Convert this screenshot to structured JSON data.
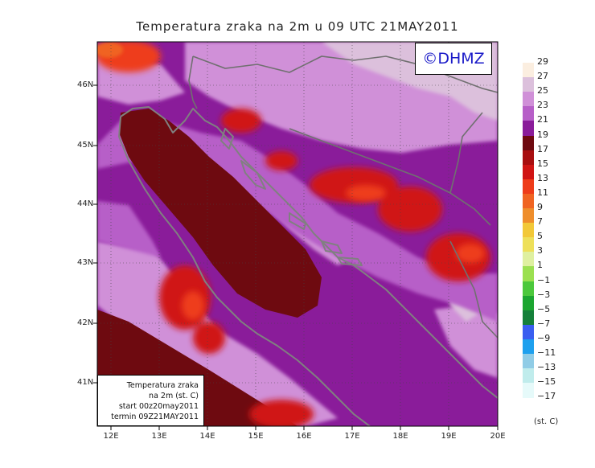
{
  "title": "Temperatura zraka na 2m u 09 UTC 21MAY2011",
  "copyright": "©DHMZ",
  "info": {
    "line1": "Temperatura zraka",
    "line2": "na 2m (st. C)",
    "line3": "start 00z20may2011",
    "line4": "termin 09Z21MAY2011"
  },
  "lat_labels": [
    {
      "label": "46N",
      "value": 46
    },
    {
      "label": "45N",
      "value": 45
    },
    {
      "label": "44N",
      "value": 44
    },
    {
      "label": "43N",
      "value": 43
    },
    {
      "label": "42N",
      "value": 42
    },
    {
      "label": "41N",
      "value": 41
    }
  ],
  "lon_labels": [
    {
      "label": "12E",
      "value": 12
    },
    {
      "label": "13E",
      "value": 13
    },
    {
      "label": "14E",
      "value": 14
    },
    {
      "label": "15E",
      "value": 15
    },
    {
      "label": "16E",
      "value": 16
    },
    {
      "label": "17E",
      "value": 17
    },
    {
      "label": "18E",
      "value": 18
    },
    {
      "label": "19E",
      "value": 19
    },
    {
      "label": "20E",
      "value": 20
    }
  ],
  "legend": {
    "unit": "(st. C)",
    "labels": [
      "29",
      "27",
      "25",
      "23",
      "21",
      "19",
      "17",
      "15",
      "13",
      "11",
      "9",
      "7",
      "5",
      "3",
      "1",
      "−1",
      "−3",
      "−5",
      "−7",
      "−9",
      "−11",
      "−13",
      "−15",
      "−17"
    ],
    "colors": [
      "#fbeee0",
      "#dcc0dc",
      "#d090d8",
      "#b75fc8",
      "#8a1c9a",
      "#6e0a10",
      "#a80e10",
      "#d01414",
      "#ee3c1a",
      "#f06422",
      "#ef8e2c",
      "#f2c838",
      "#eee05a",
      "#dff0a0",
      "#9be050",
      "#4cc83c",
      "#1ca630",
      "#15803a",
      "#3a5ef0",
      "#1ea0ee",
      "#90cce6",
      "#c0ecec",
      "#e6fafa"
    ],
    "colormap_note_colors": {
      "sea_warm": "#6e0a10",
      "land_dark": "#8a1c9a",
      "coast": "#808080"
    }
  }
}
